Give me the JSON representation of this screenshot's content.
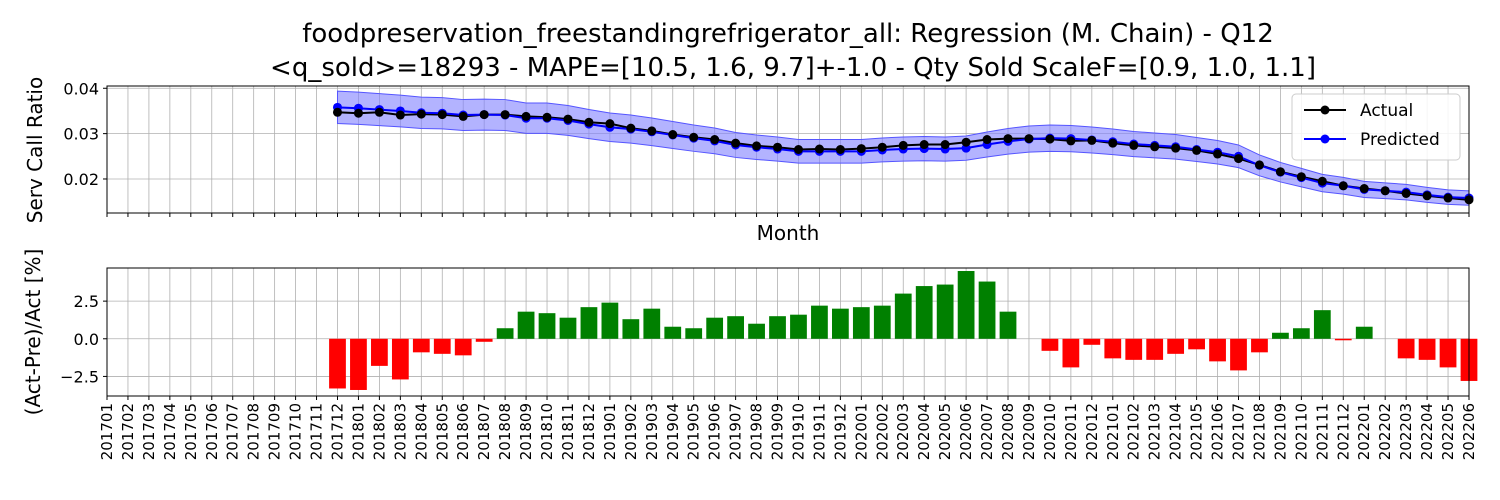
{
  "chart_data": [
    {
      "type": "line",
      "title_line1": "foodpreservation_freestandingrefrigerator_all: Regression (M. Chain) - Q12",
      "title_line2": "<q_sold>=18293 - MAPE=[10.5, 1.6, 9.7]+-1.0 - Qty Sold ScaleF=[0.9, 1.0, 1.1]",
      "xlabel": "Month",
      "ylabel": "Serv Call Ratio",
      "ylim": [
        0.0125,
        0.0405
      ],
      "yticks": [
        "0.02",
        "0.03",
        "0.04"
      ],
      "grid": true,
      "legend_placement": "upper-right",
      "colors": {
        "actual": "#000000",
        "predicted": "#0000ff",
        "band": "#8080ff"
      },
      "x": [
        "201712",
        "201801",
        "201802",
        "201803",
        "201804",
        "201805",
        "201806",
        "201807",
        "201808",
        "201809",
        "201810",
        "201811",
        "201812",
        "201901",
        "201902",
        "201903",
        "201904",
        "201905",
        "201906",
        "201907",
        "201908",
        "201909",
        "201910",
        "201911",
        "201912",
        "202001",
        "202002",
        "202003",
        "202004",
        "202005",
        "202006",
        "202007",
        "202008",
        "202009",
        "202010",
        "202011",
        "202012",
        "202101",
        "202102",
        "202103",
        "202104",
        "202105",
        "202106",
        "202107",
        "202108",
        "202109",
        "202110",
        "202111",
        "202112",
        "202201",
        "202202",
        "202203",
        "202204",
        "202205",
        "202206"
      ],
      "series": [
        {
          "name": "Actual",
          "values": [
            0.0347,
            0.0345,
            0.0347,
            0.0341,
            0.0343,
            0.0342,
            0.0338,
            0.0342,
            0.0342,
            0.0338,
            0.0336,
            0.0332,
            0.0325,
            0.0322,
            0.0312,
            0.0306,
            0.0298,
            0.0292,
            0.0287,
            0.0279,
            0.0273,
            0.027,
            0.0265,
            0.0266,
            0.0265,
            0.0267,
            0.027,
            0.0274,
            0.0276,
            0.0276,
            0.0281,
            0.0287,
            0.0289,
            0.0289,
            0.0288,
            0.0284,
            0.0285,
            0.0279,
            0.0274,
            0.0271,
            0.0268,
            0.0263,
            0.0255,
            0.0245,
            0.0231,
            0.0216,
            0.0205,
            0.0195,
            0.0185,
            0.0179,
            0.0174,
            0.0168,
            0.0163,
            0.0158,
            0.0154
          ]
        },
        {
          "name": "Predicted",
          "values": [
            0.0358,
            0.0356,
            0.0353,
            0.035,
            0.0346,
            0.0345,
            0.0341,
            0.0342,
            0.0341,
            0.0334,
            0.0334,
            0.0329,
            0.0321,
            0.0314,
            0.031,
            0.0304,
            0.0297,
            0.029,
            0.0284,
            0.0275,
            0.027,
            0.0266,
            0.0261,
            0.0261,
            0.0261,
            0.0261,
            0.0264,
            0.0266,
            0.0267,
            0.0266,
            0.0268,
            0.0276,
            0.0283,
            0.0288,
            0.029,
            0.0289,
            0.0286,
            0.0282,
            0.0277,
            0.0274,
            0.0271,
            0.0265,
            0.0259,
            0.025,
            0.023,
            0.0215,
            0.0203,
            0.0191,
            0.0185,
            0.0177,
            0.0174,
            0.0171,
            0.0165,
            0.016,
            0.0158
          ]
        }
      ],
      "band_scale": [
        0.9,
        1.1
      ]
    },
    {
      "type": "bar",
      "xlabel": "",
      "ylabel": "(Act-Pre)/Act [%]",
      "ylim": [
        -3.8,
        4.7
      ],
      "yticks": [
        "−2.5",
        "0.0",
        "2.5"
      ],
      "ytick_values": [
        -2.5,
        0.0,
        2.5
      ],
      "grid": true,
      "colors": {
        "positive": "#008000",
        "negative": "#ff0000"
      },
      "categories": [
        "201701",
        "201702",
        "201703",
        "201704",
        "201705",
        "201706",
        "201707",
        "201708",
        "201709",
        "201710",
        "201711",
        "201712",
        "201801",
        "201802",
        "201803",
        "201804",
        "201805",
        "201806",
        "201807",
        "201808",
        "201809",
        "201810",
        "201811",
        "201812",
        "201901",
        "201902",
        "201903",
        "201904",
        "201905",
        "201906",
        "201907",
        "201908",
        "201909",
        "201910",
        "201911",
        "201912",
        "202001",
        "202002",
        "202003",
        "202004",
        "202005",
        "202006",
        "202007",
        "202008",
        "202009",
        "202010",
        "202011",
        "202012",
        "202101",
        "202102",
        "202103",
        "202104",
        "202105",
        "202106",
        "202107",
        "202108",
        "202109",
        "202110",
        "202111",
        "202112",
        "202201",
        "202202",
        "202203",
        "202204",
        "202205",
        "202206"
      ],
      "values": [
        null,
        null,
        null,
        null,
        null,
        null,
        null,
        null,
        null,
        null,
        null,
        -3.3,
        -3.4,
        -1.8,
        -2.7,
        -0.9,
        -1.0,
        -1.1,
        -0.2,
        0.7,
        1.8,
        1.7,
        1.4,
        2.1,
        2.4,
        1.3,
        2.0,
        0.8,
        0.7,
        1.4,
        1.5,
        1.0,
        1.5,
        1.6,
        2.2,
        2.0,
        2.1,
        2.2,
        3.0,
        3.5,
        3.6,
        4.5,
        3.8,
        1.8,
        0.0,
        -0.8,
        -1.9,
        -0.4,
        -1.3,
        -1.4,
        -1.4,
        -1.0,
        -0.7,
        -1.5,
        -2.1,
        -0.9,
        0.4,
        0.7,
        1.9,
        -0.1,
        0.8,
        0.0,
        -1.3,
        -1.4,
        -1.9,
        -2.8
      ]
    }
  ]
}
